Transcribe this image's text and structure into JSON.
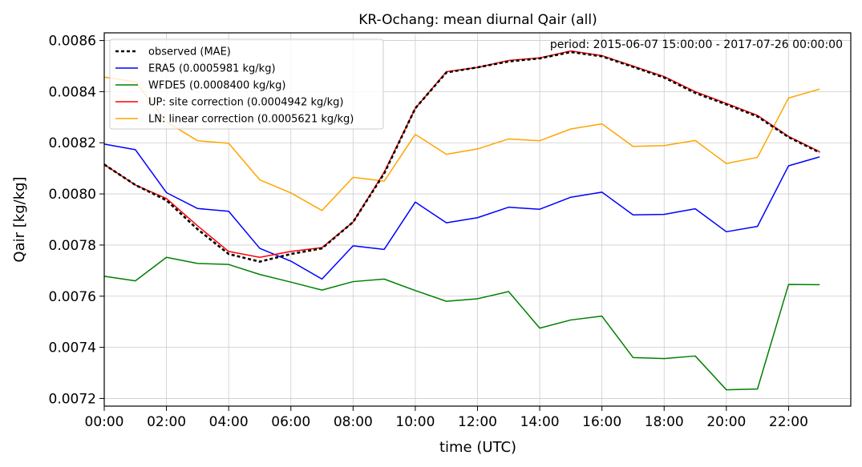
{
  "chart_data": {
    "type": "line",
    "title": "KR-Ochang: mean diurnal Qair (all)",
    "annotation": "period: 2015-06-07 15:00:00 - 2017-07-26 00:00:00",
    "xlabel": "time (UTC)",
    "ylabel": "Qair [kg/kg]",
    "xlim": [
      0,
      24
    ],
    "ylim": [
      0.00717,
      0.00863
    ],
    "grid": true,
    "legend_position": "top-left",
    "x_ticks": [
      0,
      2,
      4,
      6,
      8,
      10,
      12,
      14,
      16,
      18,
      20,
      22
    ],
    "x_tick_labels": [
      "00:00",
      "02:00",
      "04:00",
      "06:00",
      "08:00",
      "10:00",
      "12:00",
      "14:00",
      "16:00",
      "18:00",
      "20:00",
      "22:00"
    ],
    "y_ticks": [
      0.0072,
      0.0074,
      0.0076,
      0.0078,
      0.008,
      0.0082,
      0.0084,
      0.0086
    ],
    "y_tick_labels": [
      "0.0072",
      "0.0074",
      "0.0076",
      "0.0078",
      "0.0080",
      "0.0082",
      "0.0084",
      "0.0086"
    ],
    "x": [
      0,
      1,
      2,
      3,
      4,
      5,
      6,
      7,
      8,
      9,
      10,
      11,
      12,
      13,
      14,
      15,
      16,
      17,
      18,
      19,
      20,
      21,
      22,
      23
    ],
    "series": [
      {
        "name": "ERA5 (0.0005981 kg/kg)",
        "color": "#0000ff",
        "dash": "solid",
        "values": [
          0.008195,
          0.008173,
          0.008005,
          0.007943,
          0.007932,
          0.007787,
          0.007737,
          0.007667,
          0.007797,
          0.007783,
          0.007968,
          0.007887,
          0.007907,
          0.007948,
          0.00794,
          0.007987,
          0.008007,
          0.007918,
          0.00792,
          0.007942,
          0.007852,
          0.007873,
          0.00811,
          0.008145
        ]
      },
      {
        "name": "WFDE5 (0.0008400 kg/kg)",
        "color": "#008000",
        "dash": "solid",
        "values": [
          0.007678,
          0.00766,
          0.007752,
          0.007728,
          0.007724,
          0.007685,
          0.007655,
          0.007624,
          0.007657,
          0.007667,
          0.007622,
          0.00758,
          0.00759,
          0.007618,
          0.007475,
          0.007507,
          0.007522,
          0.00736,
          0.007356,
          0.007366,
          0.007234,
          0.007237,
          0.007646,
          0.007645
        ]
      },
      {
        "name": "UP: site correction (0.0004942 kg/kg)",
        "color": "#ff0000",
        "dash": "solid",
        "values": [
          0.008115,
          0.008035,
          0.007982,
          0.007875,
          0.007775,
          0.007752,
          0.007775,
          0.00779,
          0.00789,
          0.008085,
          0.008335,
          0.008478,
          0.008495,
          0.008522,
          0.008532,
          0.008559,
          0.008541,
          0.0085,
          0.008459,
          0.0084,
          0.008354,
          0.008307,
          0.008225,
          0.008165
        ]
      },
      {
        "name": "LN: linear correction (0.0005621 kg/kg)",
        "color": "#ffa500",
        "dash": "solid",
        "values": [
          0.008457,
          0.008439,
          0.008282,
          0.008208,
          0.008198,
          0.008055,
          0.008004,
          0.007935,
          0.008065,
          0.00805,
          0.008233,
          0.008155,
          0.008176,
          0.008215,
          0.008208,
          0.008254,
          0.008274,
          0.008186,
          0.008189,
          0.008209,
          0.008119,
          0.008143,
          0.008375,
          0.00841
        ]
      },
      {
        "name": "observed (MAE)",
        "color": "#000000",
        "dash": "dotted",
        "values": [
          0.008115,
          0.008035,
          0.007975,
          0.007862,
          0.007765,
          0.007735,
          0.007765,
          0.007787,
          0.00789,
          0.00808,
          0.008335,
          0.008475,
          0.008495,
          0.008518,
          0.00853,
          0.008555,
          0.008538,
          0.008497,
          0.008455,
          0.008395,
          0.00835,
          0.008303,
          0.008222,
          0.008162
        ]
      }
    ],
    "legend_order": [
      "observed (MAE)",
      "ERA5 (0.0005981 kg/kg)",
      "WFDE5 (0.0008400 kg/kg)",
      "UP: site correction (0.0004942 kg/kg)",
      "LN: linear correction (0.0005621 kg/kg)"
    ]
  }
}
